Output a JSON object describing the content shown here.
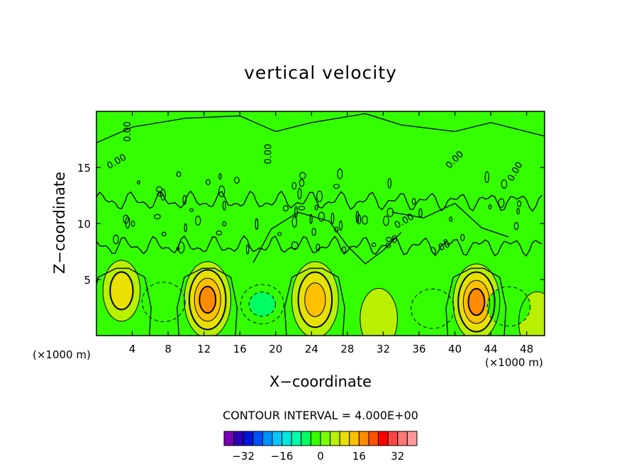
{
  "title": "vertical velocity",
  "xlabel": "X−coordinate",
  "ylabel": "Z−coordinate",
  "x_unit": "(×1000 m)",
  "y_unit": "(×1000 m)",
  "contour_interval_label": "CONTOUR INTERVAL = 4.000E+00",
  "contour_label_text": "0.00",
  "colors": {
    "background": "#33ff00",
    "line": "#000000",
    "colorbar": [
      "#7a00b4",
      "#2c00b4",
      "#0014d8",
      "#0050ff",
      "#0090ff",
      "#00c8ff",
      "#00e8e0",
      "#00ffa8",
      "#00ff60",
      "#33ff00",
      "#78ff00",
      "#b8f000",
      "#e8e000",
      "#ffc000",
      "#ff8c00",
      "#ff5000",
      "#ff0000",
      "#ff4444",
      "#ff7777",
      "#ff9999"
    ]
  },
  "chart_data": {
    "type": "heatmap",
    "title": "vertical velocity",
    "xlabel": "X−coordinate",
    "ylabel": "Z−coordinate",
    "xlim": [
      0,
      50
    ],
    "ylim": [
      0,
      20
    ],
    "xticks": [
      4,
      8,
      12,
      16,
      20,
      24,
      28,
      32,
      36,
      40,
      44,
      48
    ],
    "yticks": [
      5,
      10,
      15
    ],
    "contour_interval": 4.0,
    "colorbar_ticks": [
      -32,
      -16,
      0,
      16,
      32
    ],
    "features": [
      {
        "kind": "updraft",
        "x": 2.8,
        "z": 4.0,
        "max": 8
      },
      {
        "kind": "updraft",
        "x": 12.4,
        "z": 3.2,
        "max": 16
      },
      {
        "kind": "updraft",
        "x": 24.4,
        "z": 3.2,
        "max": 12
      },
      {
        "kind": "updraft",
        "x": 42.4,
        "z": 3.0,
        "max": 16
      },
      {
        "kind": "updraft",
        "x": 31.5,
        "z": 1.5,
        "max": 4
      },
      {
        "kind": "updraft",
        "x": 49.2,
        "z": 1.2,
        "max": 4
      },
      {
        "kind": "downdraft",
        "x": 7.5,
        "z": 3.0,
        "min": -4
      },
      {
        "kind": "downdraft",
        "x": 18.5,
        "z": 2.8,
        "min": -8
      },
      {
        "kind": "downdraft",
        "x": 37.5,
        "z": 2.4,
        "min": -4
      },
      {
        "kind": "downdraft",
        "x": 46.0,
        "z": 2.6,
        "min": -4
      }
    ]
  }
}
